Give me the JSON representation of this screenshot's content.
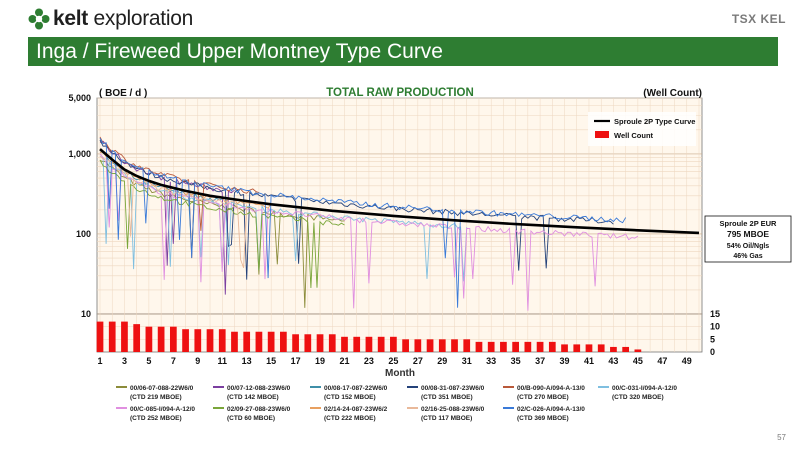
{
  "header": {
    "logo_bold": "kelt",
    "logo_rest": " exploration",
    "tsx_label": "TSX KEL",
    "title": "Inga / Fireweed Upper Montney Type Curve",
    "page_number": "57"
  },
  "colors": {
    "brand_green": "#2e7d32",
    "type_curve": "#000000",
    "well_count": "#ee1111"
  },
  "chart_data": {
    "type": "line",
    "title": "TOTAL RAW PRODUCTION",
    "ylabel": "( BOE / d )",
    "y2label": "(Well Count)",
    "xlabel": "Month",
    "yscale": "log",
    "ylim": [
      10,
      5000
    ],
    "yticks": [
      "5,000",
      "1,000",
      "100",
      "10"
    ],
    "y2lim": [
      0,
      15
    ],
    "y2ticks": [
      "15",
      "10",
      "5",
      "0"
    ],
    "xlim": [
      1,
      50
    ],
    "xticks": [
      "1",
      "3",
      "5",
      "7",
      "9",
      "11",
      "13",
      "15",
      "17",
      "19",
      "21",
      "23",
      "25",
      "27",
      "29",
      "31",
      "33",
      "35",
      "37",
      "39",
      "41",
      "43",
      "45",
      "47",
      "49"
    ],
    "grid": true,
    "legend_position": "top-right",
    "legend": [
      "Sproule 2P Type Curve",
      "Well Count"
    ],
    "type_curve": {
      "name": "Sproule 2P Type Curve",
      "x": [
        1,
        2,
        3,
        4,
        5,
        6,
        8,
        10,
        12,
        15,
        20,
        25,
        30,
        35,
        40,
        45,
        50
      ],
      "y": [
        1150,
        850,
        640,
        530,
        460,
        410,
        345,
        300,
        270,
        235,
        195,
        168,
        148,
        133,
        121,
        111,
        103
      ]
    },
    "well_count": {
      "name": "Well Count",
      "x": [
        1,
        2,
        3,
        4,
        5,
        6,
        7,
        8,
        9,
        10,
        11,
        12,
        13,
        14,
        15,
        16,
        17,
        18,
        19,
        20,
        21,
        22,
        23,
        24,
        25,
        26,
        27,
        28,
        29,
        30,
        31,
        32,
        33,
        34,
        35,
        36,
        37,
        38,
        39,
        40,
        41,
        42,
        43,
        44,
        45,
        46,
        47,
        48,
        49,
        50
      ],
      "values": [
        12,
        12,
        12,
        11,
        10,
        10,
        10,
        9,
        9,
        9,
        9,
        8,
        8,
        8,
        8,
        8,
        7,
        7,
        7,
        7,
        6,
        6,
        6,
        6,
        6,
        5,
        5,
        5,
        5,
        5,
        5,
        4,
        4,
        4,
        4,
        4,
        4,
        4,
        3,
        3,
        3,
        3,
        2,
        2,
        1,
        0,
        0,
        0,
        0,
        0
      ]
    },
    "wells": [
      {
        "name": "00/06-07-088-22W6/0",
        "ctd": "(CTD 219 MBOE)",
        "color": "#8c8c3a"
      },
      {
        "name": "00/07-12-088-23W6/0",
        "ctd": "(CTD 142 MBOE)",
        "color": "#7b3fa0"
      },
      {
        "name": "00/08-17-087-22W6/0",
        "ctd": "(CTD 152 MBOE)",
        "color": "#3f8fa8"
      },
      {
        "name": "00/08-31-087-23W6/0",
        "ctd": "(CTD 351 MBOE)",
        "color": "#24427a"
      },
      {
        "name": "00/B-090-A/094-A-13/0",
        "ctd": "(CTD 270 MBOE)",
        "color": "#b9593a"
      },
      {
        "name": "00/C-031-I/094-A-12/0",
        "ctd": "(CTD 320 MBOE)",
        "color": "#7fbfe0"
      },
      {
        "name": "00/C-085-I/094-A-12/0",
        "ctd": "(CTD 252 MBOE)",
        "color": "#e08fe0"
      },
      {
        "name": "02/09-27-088-23W6/0",
        "ctd": "(CTD 60 MBOE)",
        "color": "#7aa63a"
      },
      {
        "name": "02/14-24-087-23W6/2",
        "ctd": "(CTD 222 MBOE)",
        "color": "#e8a060"
      },
      {
        "name": "02/16-25-088-23W6/0",
        "ctd": "(CTD 117 MBOE)",
        "color": "#e9b99a"
      },
      {
        "name": "02/C-026-A/094-A-13/0",
        "ctd": "(CTD 369 MBOE)",
        "color": "#3a7ad8"
      }
    ],
    "eur_box": {
      "title": "Sproule 2P EUR",
      "value": "795 MBOE",
      "oil": "54% Oil/Ngls",
      "gas": "46% Gas"
    }
  }
}
